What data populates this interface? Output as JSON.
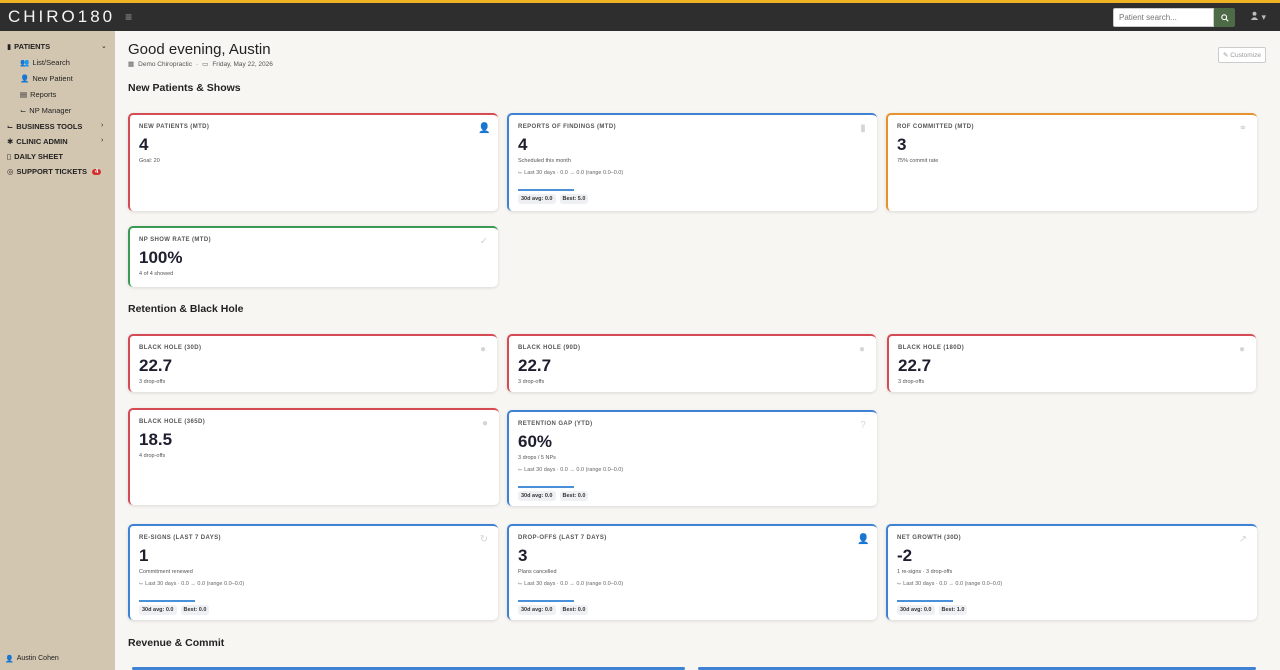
{
  "app": {
    "logo": "CHIRO180",
    "hamburger": "≡",
    "user_icon": "user-icon"
  },
  "search": {
    "placeholder": "Patient search...",
    "icon": "🔍"
  },
  "sidebar": {
    "patients": "PATIENTS",
    "list_search": "List/Search",
    "new_patient": "New Patient",
    "reports": "Reports",
    "np_manager": "NP Manager",
    "business_tools": "BUSINESS TOOLS",
    "clinic_admin": "CLINIC ADMIN",
    "daily_sheet": "DAILY SHEET",
    "support_tickets": "SUPPORT TICKETS",
    "support_count": "4",
    "user_name": "Austin Cohen"
  },
  "header": {
    "greeting": "Good evening, Austin",
    "clinic": "Demo Chiropractic",
    "separator": "·",
    "date": "Friday, May 22, 2026",
    "customize": "Customize"
  },
  "sections": {
    "new_patients": "New Patients & Shows",
    "retention": "Retention & Black Hole",
    "revenue": "Revenue & Commit"
  },
  "cards": {
    "new_patients": {
      "label": "NEW PATIENTS (MTD)",
      "value": "4",
      "sub": "Goal: 20"
    },
    "rof": {
      "label": "REPORTS OF FINDINGS (MTD)",
      "value": "4",
      "sub": "Scheduled this month",
      "trend": "Last 30 days · 0.0 → 0.0 (range 0.0–0.0)",
      "avg": "30d avg: 0.0",
      "best": "Best: 5.0"
    },
    "rof_committed": {
      "label": "ROF COMMITTED (MTD)",
      "value": "3",
      "sub": "75% commit rate"
    },
    "np_show": {
      "label": "NP SHOW RATE (MTD)",
      "value": "100%",
      "sub": "4 of 4 showed"
    },
    "bh30": {
      "label": "BLACK HOLE (30D)",
      "value": "22.7",
      "sub": "3 drop-offs"
    },
    "bh90": {
      "label": "BLACK HOLE (90D)",
      "value": "22.7",
      "sub": "3 drop-offs"
    },
    "bh180": {
      "label": "BLACK HOLE (180D)",
      "value": "22.7",
      "sub": "3 drop-offs"
    },
    "bh365": {
      "label": "BLACK HOLE (365D)",
      "value": "18.5",
      "sub": "4 drop-offs"
    },
    "retention_gap": {
      "label": "RETENTION GAP (YTD)",
      "value": "60%",
      "sub": "3 drops / 5 NPs",
      "trend": "Last 30 days · 0.0 → 0.0 (range 0.0–0.0)",
      "avg": "30d avg: 0.0",
      "best": "Best: 0.0"
    },
    "resigns": {
      "label": "RE-SIGNS (LAST 7 DAYS)",
      "value": "1",
      "sub": "Commitment renewed",
      "trend": "Last 30 days · 0.0 → 0.0 (range 0.0–0.0)",
      "avg": "30d avg: 0.0",
      "best": "Best: 0.0"
    },
    "dropoffs": {
      "label": "DROP-OFFS (LAST 7 DAYS)",
      "value": "3",
      "sub": "Plans cancelled",
      "trend": "Last 30 days · 0.0 → 0.0 (range 0.0–0.0)",
      "avg": "30d avg: 0.0",
      "best": "Best: 0.0"
    },
    "net_growth": {
      "label": "NET GROWTH (30D)",
      "value": "-2",
      "sub": "1 re-signs · 3 drop-offs",
      "trend": "Last 30 days · 0.0 → 0.0 (range 0.0–0.0)",
      "avg": "30d avg: 0.0",
      "best": "Best: 1.0"
    }
  },
  "colors": {
    "accent": "#f0b323",
    "sidebar": "#d3c6b1",
    "red": "#d44b54",
    "blue": "#3f82d4",
    "orange": "#e6922f",
    "green": "#3d9a55"
  }
}
